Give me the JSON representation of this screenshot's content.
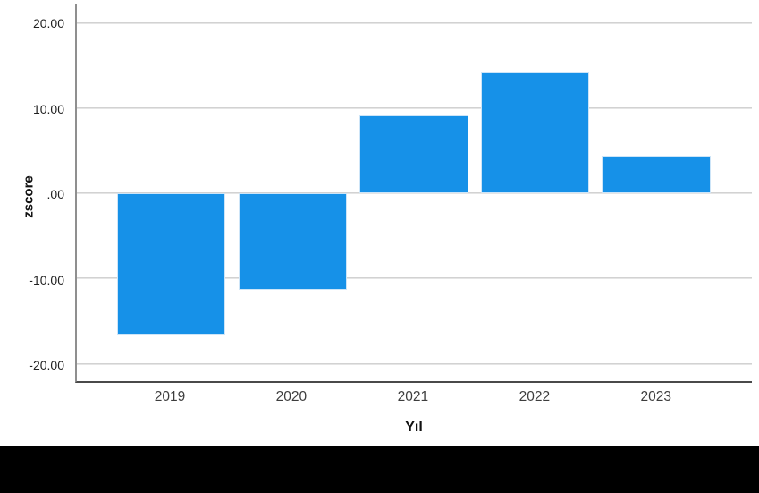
{
  "chart_data": {
    "type": "bar",
    "title": "",
    "categories": [
      "2019",
      "2020",
      "2021",
      "2022",
      "2023"
    ],
    "values": [
      -16.6,
      -11.3,
      9.2,
      14.3,
      4.5
    ],
    "xlabel": "Yıl",
    "ylabel": "zscore",
    "ylim": [
      -22.05,
      22.25
    ],
    "yticks": [
      {
        "value": 20,
        "label": "20.00"
      },
      {
        "value": 10,
        "label": "10.00"
      },
      {
        "value": 0,
        "label": ".00"
      },
      {
        "value": -10,
        "label": "-10.00"
      },
      {
        "value": -20,
        "label": "-20.00"
      }
    ],
    "grid": true,
    "legend": false,
    "bar_color": "#1691e8",
    "layout": {
      "first_center_pct": 14.0,
      "step_pct": 17.96,
      "bar_width_pct": 16.1
    }
  },
  "redaction": {
    "color": "#000000"
  }
}
